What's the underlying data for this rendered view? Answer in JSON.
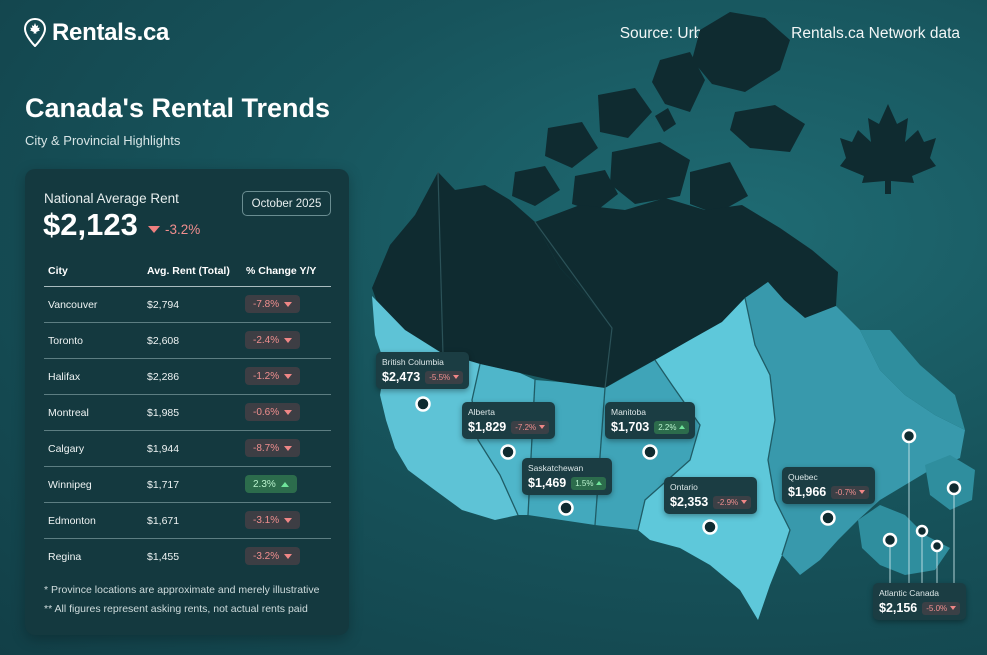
{
  "brand": {
    "name": "Rentals.ca"
  },
  "source": "Source: Urbanation Inc., Rentals.ca Network data",
  "title": "Canada's Rental Trends",
  "subtitle": "City & Provincial Highlights",
  "national": {
    "label": "National Average Rent",
    "value": "$2,123",
    "change": "-3.2%",
    "direction": "down",
    "period": "October 2025"
  },
  "table": {
    "headers": [
      "City",
      "Avg. Rent (Total)",
      "% Change Y/Y"
    ],
    "rows": [
      {
        "city": "Vancouver",
        "rent": "$2,794",
        "change": "-7.8%",
        "direction": "down"
      },
      {
        "city": "Toronto",
        "rent": "$2,608",
        "change": "-2.4%",
        "direction": "down"
      },
      {
        "city": "Halifax",
        "rent": "$2,286",
        "change": "-1.2%",
        "direction": "down"
      },
      {
        "city": "Montreal",
        "rent": "$1,985",
        "change": "-0.6%",
        "direction": "down"
      },
      {
        "city": "Calgary",
        "rent": "$1,944",
        "change": "-8.7%",
        "direction": "down"
      },
      {
        "city": "Winnipeg",
        "rent": "$1,717",
        "change": "2.3%",
        "direction": "up"
      },
      {
        "city": "Edmonton",
        "rent": "$1,671",
        "change": "-3.1%",
        "direction": "down"
      },
      {
        "city": "Regina",
        "rent": "$1,455",
        "change": "-3.2%",
        "direction": "down"
      }
    ]
  },
  "footnotes": [
    "* Province locations are approximate and merely illustrative",
    "** All figures represent asking rents, not actual rents paid"
  ],
  "provinces": [
    {
      "name": "British Columbia",
      "rent": "$2,473",
      "change": "-5.5%",
      "direction": "down"
    },
    {
      "name": "Alberta",
      "rent": "$1,829",
      "change": "-7.2%",
      "direction": "down"
    },
    {
      "name": "Saskatchewan",
      "rent": "$1,469",
      "change": "1.5%",
      "direction": "up"
    },
    {
      "name": "Manitoba",
      "rent": "$1,703",
      "change": "2.2%",
      "direction": "up"
    },
    {
      "name": "Ontario",
      "rent": "$2,353",
      "change": "-2.9%",
      "direction": "down"
    },
    {
      "name": "Quebec",
      "rent": "$1,966",
      "change": "-0.7%",
      "direction": "down"
    },
    {
      "name": "Atlantic Canada",
      "rent": "$2,156",
      "change": "-5.0%",
      "direction": "down"
    }
  ],
  "colors": {
    "background": "#17545c",
    "panel": "#14393f",
    "land_dark": "#0f2b30",
    "land_light": "#5ec3d6",
    "land_mid": "#2f8e9e",
    "negative": "#f08f8f",
    "positive": "#6fe39a"
  },
  "icons": [
    "location-pin-maple-leaf-icon",
    "maple-leaf-icon",
    "down-arrow-icon",
    "up-arrow-icon",
    "map-marker-icon"
  ]
}
